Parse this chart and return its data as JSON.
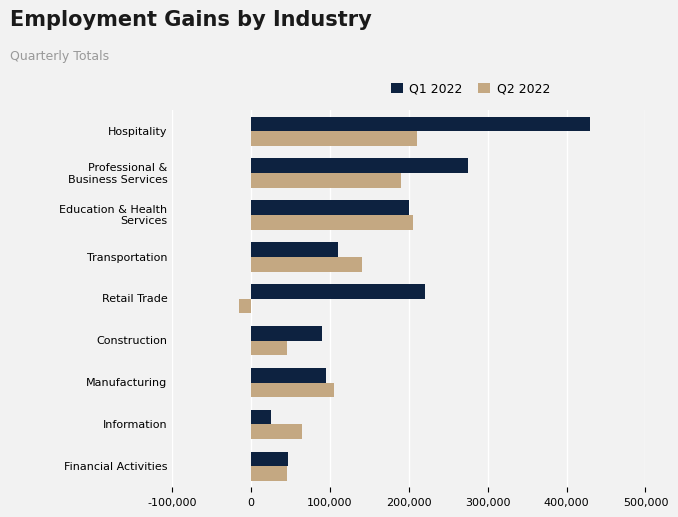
{
  "title": "Employment Gains by Industry",
  "subtitle": "Quarterly Totals",
  "categories": [
    "Hospitality",
    "Professional &\nBusiness Services",
    "Education & Health\nServices",
    "Transportation",
    "Retail Trade",
    "Construction",
    "Manufacturing",
    "Information",
    "Financial Activities"
  ],
  "q1_values": [
    430000,
    275000,
    200000,
    110000,
    220000,
    90000,
    95000,
    25000,
    47000
  ],
  "q2_values": [
    210000,
    190000,
    205000,
    140000,
    -15000,
    45000,
    105000,
    65000,
    45000
  ],
  "q1_color": "#0d2240",
  "q2_color": "#c4a882",
  "background_color": "#f2f2f2",
  "xlim": [
    -100000,
    500000
  ],
  "xticks": [
    -100000,
    0,
    100000,
    200000,
    300000,
    400000,
    500000
  ],
  "legend_labels": [
    "Q1 2022",
    "Q2 2022"
  ],
  "bar_height": 0.35,
  "title_fontsize": 15,
  "subtitle_fontsize": 9,
  "axis_label_fontsize": 8,
  "legend_fontsize": 9
}
